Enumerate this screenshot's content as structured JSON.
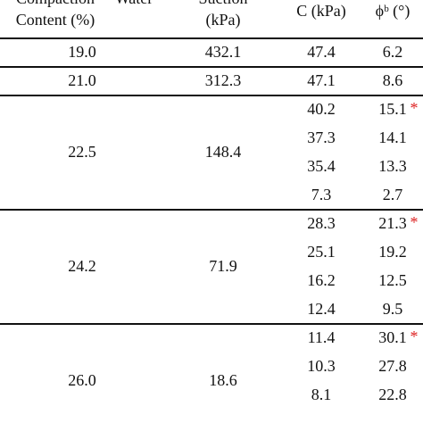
{
  "header": {
    "columns": [
      [
        "Compaction",
        "Content (%)"
      ],
      [
        "Water"
      ],
      [
        "Suction",
        "(kPa)"
      ],
      [
        "C (kPa)"
      ],
      [
        "ϕᵇ (°)"
      ]
    ]
  },
  "table": {
    "groups": [
      {
        "water": "19.0",
        "suction": "432.1",
        "rows": [
          {
            "c": "47.4",
            "phi": "6.2"
          }
        ]
      },
      {
        "water": "21.0",
        "suction": "312.3",
        "rows": [
          {
            "c": "47.1",
            "phi": "8.6"
          }
        ]
      },
      {
        "water": "22.5",
        "suction": "148.4",
        "rows": [
          {
            "c": "40.2",
            "phi": "15.1",
            "note": "*"
          },
          {
            "c": "37.3",
            "phi": "14.1"
          },
          {
            "c": "35.4",
            "phi": "13.3"
          },
          {
            "c": "7.3",
            "phi": "2.7"
          }
        ]
      },
      {
        "water": "24.2",
        "suction": "71.9",
        "rows": [
          {
            "c": "28.3",
            "phi": "21.3",
            "note": "*"
          },
          {
            "c": "25.1",
            "phi": "19.2"
          },
          {
            "c": "16.2",
            "phi": "12.5"
          },
          {
            "c": "12.4",
            "phi": "9.5"
          }
        ]
      },
      {
        "water": "26.0",
        "suction": "18.6",
        "rows": [
          {
            "c": "11.4",
            "phi": "30.1",
            "note": "*"
          },
          {
            "c": "10.3",
            "phi": "27.8"
          },
          {
            "c": "8.1",
            "phi": "22.8"
          }
        ]
      }
    ]
  }
}
